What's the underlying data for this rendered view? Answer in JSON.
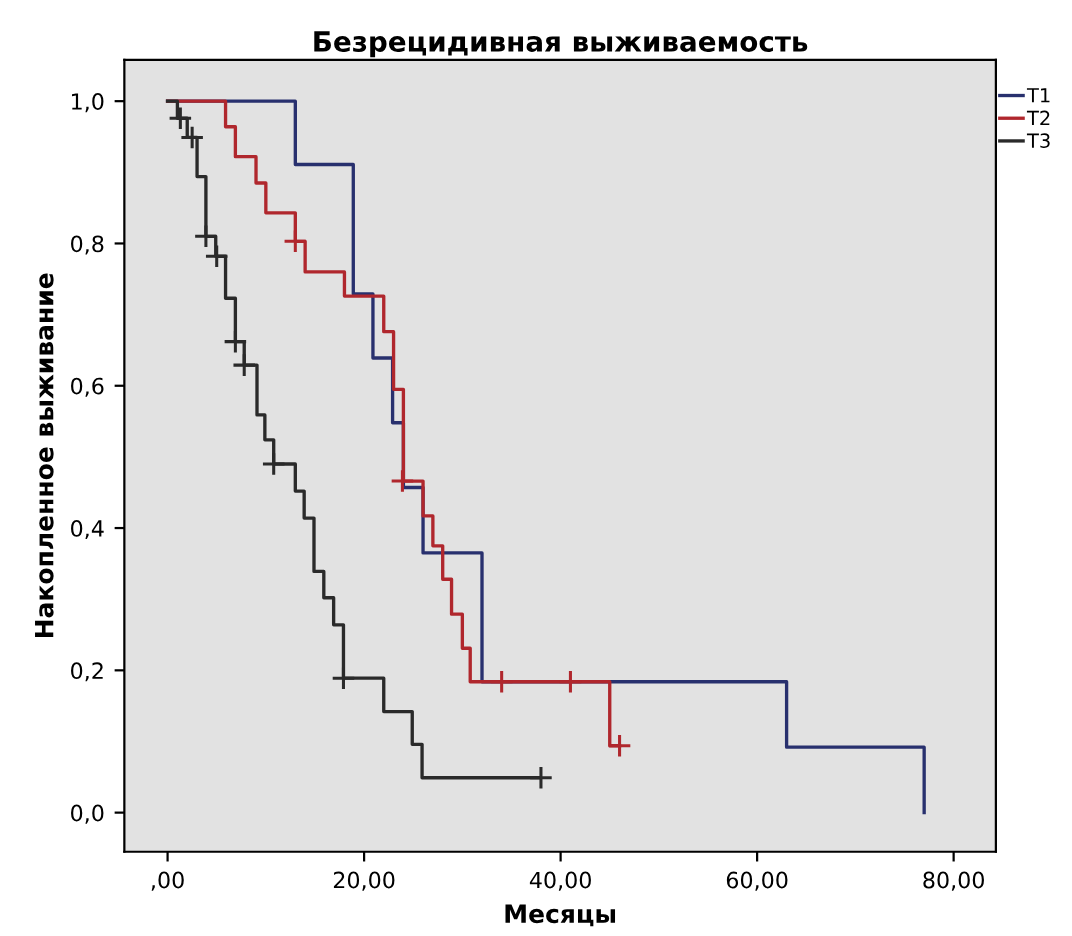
{
  "chart_data": {
    "type": "step",
    "title": "Безрецидивная выживаемость",
    "xlabel": "Месяцы",
    "ylabel": "Накопленное выживание",
    "xlim": [
      -4.4,
      84.3
    ],
    "ylim": [
      -0.055,
      1.058
    ],
    "xticks": [
      {
        "value": 0,
        "label": ",00"
      },
      {
        "value": 20,
        "label": "20,00"
      },
      {
        "value": 40,
        "label": "40,00"
      },
      {
        "value": 60,
        "label": "60,00"
      },
      {
        "value": 80,
        "label": "80,00"
      }
    ],
    "yticks": [
      {
        "value": 0,
        "label": "0,0"
      },
      {
        "value": 0.2,
        "label": "0,2"
      },
      {
        "value": 0.4,
        "label": "0,4"
      },
      {
        "value": 0.6,
        "label": "0,6"
      },
      {
        "value": 0.8,
        "label": "0,8"
      },
      {
        "value": 1.0,
        "label": "1,0"
      }
    ],
    "grid": false,
    "legend": "top right",
    "line_style": "solid",
    "series": [
      {
        "name": "T1",
        "color": "#28306e",
        "x": [
          0,
          13.0,
          18.9,
          20.9,
          22.9,
          24.0,
          26.0,
          32.0,
          63.0,
          77.0
        ],
        "values": [
          1.0,
          0.911,
          0.729,
          0.639,
          0.548,
          0.457,
          0.365,
          0.184,
          0.092,
          0.0
        ]
      },
      {
        "name": "T2",
        "color": "#b0272d",
        "x": [
          0,
          5.9,
          6.9,
          9.0,
          10.0,
          13.0,
          14.0,
          18.0,
          22.0,
          23.0,
          24.0,
          26.0,
          27.0,
          28.0,
          28.9,
          30.0,
          30.8,
          45.0,
          46.0
        ],
        "values": [
          1.0,
          0.964,
          0.922,
          0.885,
          0.843,
          0.803,
          0.76,
          0.726,
          0.676,
          0.595,
          0.466,
          0.417,
          0.375,
          0.328,
          0.279,
          0.231,
          0.184,
          0.094,
          0.094
        ]
      },
      {
        "name": "T3",
        "color": "#2a2a2a",
        "x": [
          0,
          1.0,
          2.0,
          3.0,
          3.9,
          4.9,
          5.9,
          6.9,
          7.8,
          9.1,
          9.9,
          10.8,
          13.0,
          13.9,
          14.9,
          15.9,
          16.9,
          17.9,
          22.0,
          24.9,
          25.9,
          37.9
        ],
        "values": [
          1.0,
          0.976,
          0.949,
          0.894,
          0.81,
          0.782,
          0.723,
          0.662,
          0.629,
          0.559,
          0.524,
          0.49,
          0.452,
          0.414,
          0.339,
          0.302,
          0.264,
          0.189,
          0.142,
          0.096,
          0.049,
          0.049
        ]
      },
      {
        "type": "scatter",
        "marker": "cross",
        "color": "#b0272d",
        "x": [
          13.0,
          23.9,
          34.0,
          41.0,
          46.0
        ],
        "values": [
          0.803,
          0.466,
          0.184,
          0.184,
          0.094
        ]
      },
      {
        "type": "scatter",
        "marker": "cross",
        "color": "#2a2a2a",
        "x": [
          1.3,
          2.5,
          3.9,
          5.0,
          6.9,
          7.8,
          10.8,
          17.9,
          38.0
        ],
        "values": [
          0.976,
          0.949,
          0.81,
          0.782,
          0.662,
          0.629,
          0.49,
          0.189,
          0.049
        ]
      }
    ]
  }
}
